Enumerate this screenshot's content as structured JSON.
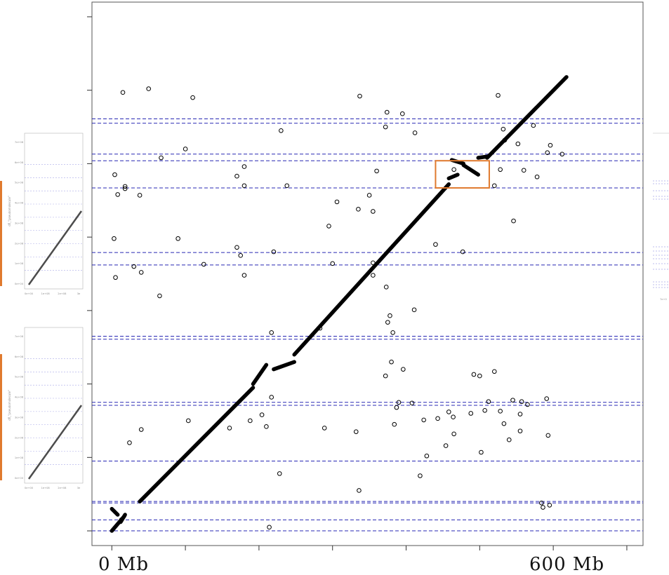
{
  "chart_data": {
    "type": "scatter",
    "title": "",
    "xlabel": "",
    "ylabel": "",
    "x_tick_labels": [
      "0 Mb",
      "600 Mb"
    ],
    "x_label_values": [
      0,
      600
    ],
    "xlim": [
      -27,
      722
    ],
    "ylim": [
      -20,
      720
    ],
    "grid": false,
    "point_color": "#000000",
    "guide_color": "#2828b4",
    "highlight_color": "#e07a2e",
    "x_ticks": [
      0,
      100,
      200,
      300,
      400,
      500,
      600,
      700
    ],
    "y_ticks": [
      0,
      100,
      200,
      300,
      400,
      500,
      600,
      700
    ],
    "horizontal_guides": [
      0,
      15,
      38,
      40,
      95,
      171,
      175,
      261,
      265,
      362,
      379,
      467,
      504,
      513,
      555,
      561
    ],
    "highlight_box": {
      "x": [
        440,
        513
      ],
      "y": [
        467,
        504
      ]
    },
    "diagonal_segments": [
      {
        "x": [
          0,
          17
        ],
        "y": [
          0,
          20
        ]
      },
      {
        "x": [
          0,
          8
        ],
        "y": [
          30,
          22
        ]
      },
      {
        "x": [
          12,
          18
        ],
        "y": [
          12,
          22
        ]
      },
      {
        "x": [
          38,
          192
        ],
        "y": [
          40,
          195
        ]
      },
      {
        "x": [
          192,
          210
        ],
        "y": [
          200,
          226
        ]
      },
      {
        "x": [
          220,
          248
        ],
        "y": [
          220,
          230
        ]
      },
      {
        "x": [
          248,
          458
        ],
        "y": [
          240,
          472
        ]
      },
      {
        "x": [
          458,
          470
        ],
        "y": [
          480,
          485
        ]
      },
      {
        "x": [
          462,
          478
        ],
        "y": [
          505,
          500
        ]
      },
      {
        "x": [
          478,
          498
        ],
        "y": [
          498,
          485
        ]
      },
      {
        "x": [
          498,
          512
        ],
        "y": [
          508,
          510
        ]
      },
      {
        "x": [
          510,
          618
        ],
        "y": [
          508,
          618
        ]
      }
    ],
    "series": [
      {
        "x": [
          15,
          50,
          110,
          18,
          67,
          337,
          372,
          395,
          534,
          528,
          560,
          465,
          525,
          612,
          100,
          180,
          230,
          350,
          412,
          360,
          374,
          573,
          4,
          8,
          18,
          38,
          180,
          170,
          238,
          520,
          532,
          578,
          552,
          596,
          592,
          40,
          125,
          175,
          295,
          306,
          355,
          440,
          477,
          300,
          5,
          30,
          3,
          220,
          335,
          355,
          378,
          411,
          355,
          373,
          546,
          65,
          90,
          180,
          170,
          217,
          283,
          375,
          382,
          372,
          396,
          408,
          492,
          500,
          520,
          380,
          387,
          390,
          332,
          384,
          443,
          458,
          488,
          545,
          555,
          557,
          565,
          591,
          40,
          160,
          204,
          188,
          217,
          424,
          465,
          507,
          512,
          428,
          454,
          502,
          540,
          528,
          533,
          555,
          593,
          595,
          24,
          104,
          210,
          289,
          228,
          336,
          419,
          464,
          584,
          586,
          13,
          214
        ],
        "y": [
          597,
          602,
          590,
          466,
          508,
          592,
          550,
          568,
          532,
          492,
          491,
          492,
          593,
          513,
          520,
          496,
          545,
          457,
          542,
          490,
          570,
          552,
          485,
          458,
          469,
          457,
          470,
          483,
          470,
          470,
          547,
          482,
          527,
          525,
          515,
          352,
          363,
          375,
          415,
          448,
          435,
          390,
          380,
          364,
          345,
          360,
          398,
          380,
          438,
          365,
          293,
          301,
          348,
          332,
          422,
          320,
          398,
          348,
          386,
          270,
          276,
          284,
          270,
          211,
          220,
          174,
          213,
          211,
          217,
          230,
          168,
          175,
          135,
          145,
          153,
          162,
          160,
          178,
          159,
          176,
          172,
          180,
          138,
          140,
          158,
          150,
          182,
          151,
          132,
          164,
          176,
          102,
          116,
          107,
          124,
          163,
          146,
          136,
          130,
          35,
          120,
          150,
          142,
          140,
          78,
          55,
          75,
          155,
          38,
          32,
          15,
          5
        ]
      }
    ]
  },
  "ghost_panels": {
    "left_top": {
      "y_axis_label": "dfl_\"pseudomolecule\"",
      "y_ticks": [
        "0e+00",
        "1e+08",
        "2e+08",
        "3e+08",
        "4e+08",
        "5e+08",
        "6e+08",
        "7e+08"
      ],
      "x_ticks": [
        "0e+00",
        "1e+08",
        "2e+08",
        "3e"
      ]
    },
    "left_bottom": {
      "y_axis_label": "dfl_\"pseudomolecule\"",
      "y_ticks": [
        "0e+00",
        "1e+08",
        "2e+08",
        "3e+08",
        "4e+08",
        "5e+08",
        "6e+08",
        "7e+08"
      ],
      "x_ticks": [
        "0e+00",
        "1e+08",
        "2e+08",
        "3e"
      ]
    },
    "right": {
      "x_ticks": [
        "7e+0"
      ]
    }
  }
}
